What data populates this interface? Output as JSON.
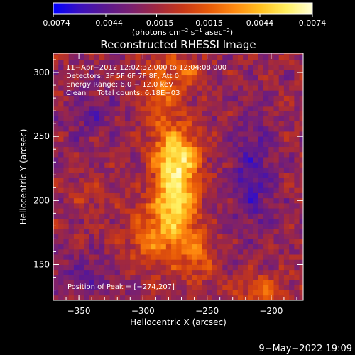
{
  "chart_data": {
    "type": "heatmap",
    "title": "Reconstructed RHESSI Image",
    "xlabel": "Heliocentric X (arcsec)",
    "ylabel": "Heliocentric Y (arcsec)",
    "xlim": [
      -370,
      -175
    ],
    "ylim": [
      122,
      315
    ],
    "x_ticks": [
      -350,
      -300,
      -250,
      -200
    ],
    "x_tick_labels": [
      "−350",
      "−300",
      "−250",
      "−200"
    ],
    "y_ticks": [
      150,
      200,
      250,
      300
    ],
    "y_tick_labels": [
      "150",
      "200",
      "250",
      "300"
    ],
    "colorbar": {
      "range": [
        -0.0074,
        0.0074
      ],
      "ticks": [
        -0.0074,
        -0.0044,
        -0.0015,
        0.0015,
        0.0044,
        0.0074
      ],
      "tick_labels": [
        "−0.0074",
        "−0.0044",
        "−0.0015",
        "0.0015",
        "0.0044",
        "0.0074"
      ],
      "colormap": [
        "#0000ff",
        "#3a10c0",
        "#5a1890",
        "#7a2070",
        "#a02840",
        "#c83818",
        "#e85a08",
        "#ff8a10",
        "#ffc020",
        "#ffef60",
        "#ffffd8"
      ],
      "unit_text": "(photons cm",
      "unit_sup1": "−2",
      "unit_mid": " s",
      "unit_sup2": "−1",
      "unit_mid2": " asec",
      "unit_sup3": "−2",
      "unit_end": ")"
    },
    "annotations": [
      "11−Apr−2012 12:02:32.000 to 12:04:08.000",
      "Detectors: 3F 5F 6F 7F 8F, Att 0",
      "Energy Range: 6.0 − 12.0 keV",
      "Clean     Total counts: 6.18E+03"
    ],
    "peak_label": "Position of Peak = [−274,207]",
    "peak": [
      -274,
      207
    ],
    "sources": [
      {
        "x": -274,
        "y": 207,
        "sx": 11,
        "sy": 22,
        "amp": 0.0076
      },
      {
        "x": -274,
        "y": 238,
        "sx": 13,
        "sy": 14,
        "amp": 0.0048
      },
      {
        "x": -290,
        "y": 172,
        "sx": 16,
        "sy": 18,
        "amp": 0.004
      },
      {
        "x": -286,
        "y": 285,
        "sx": 12,
        "sy": 20,
        "amp": 0.0034
      },
      {
        "x": -258,
        "y": 158,
        "sx": 10,
        "sy": 14,
        "amp": 0.003
      },
      {
        "x": -340,
        "y": 206,
        "sx": 12,
        "sy": 10,
        "amp": 0.0012
      },
      {
        "x": -208,
        "y": 130,
        "sx": 14,
        "sy": 9,
        "amp": 0.0032
      },
      {
        "x": -265,
        "y": 300,
        "sx": 8,
        "sy": 10,
        "amp": 0.0026
      },
      {
        "x": -215,
        "y": 220,
        "sx": 12,
        "sy": 30,
        "amp": -0.003
      },
      {
        "x": -345,
        "y": 142,
        "sx": 16,
        "sy": 10,
        "amp": -0.0022
      },
      {
        "x": -340,
        "y": 268,
        "sx": 14,
        "sy": 14,
        "amp": -0.0018
      }
    ],
    "background": -0.0019
  },
  "footer_date": "9−May−2022 19:09"
}
